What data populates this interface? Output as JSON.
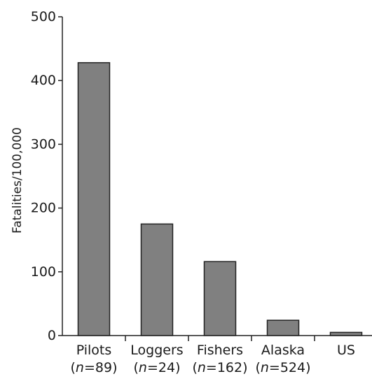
{
  "chart_data": {
    "type": "bar",
    "title": "",
    "xlabel": "",
    "ylabel": "Fatalities/100,000",
    "ylim": [
      0,
      500
    ],
    "yticks": [
      0,
      100,
      200,
      300,
      400,
      500
    ],
    "categories": [
      {
        "name": "Pilots",
        "n": "89"
      },
      {
        "name": "Loggers",
        "n": "24"
      },
      {
        "name": "Fishers",
        "n": "162"
      },
      {
        "name": "Alaska",
        "n": "524"
      },
      {
        "name": "US",
        "n": ""
      }
    ],
    "values": [
      428,
      175,
      116,
      24,
      5
    ],
    "bar_color": "#808080",
    "grid": false,
    "legend": "none"
  }
}
